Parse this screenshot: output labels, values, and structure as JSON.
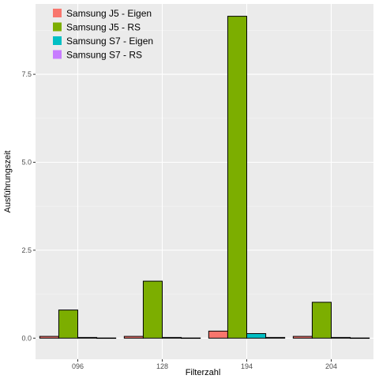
{
  "chart_data": {
    "type": "bar",
    "title": "",
    "xlabel": "Filterzahl",
    "ylabel": "Ausführungszeit",
    "categories": [
      "096",
      "128",
      "194",
      "204"
    ],
    "series": [
      {
        "name": "Samsung J5 - Eigen",
        "color": "#F8766D",
        "values": [
          0.05,
          0.05,
          0.2,
          0.05
        ]
      },
      {
        "name": "Samsung J5 - RS",
        "color": "#7CAE00",
        "values": [
          0.8,
          1.62,
          9.15,
          1.02
        ]
      },
      {
        "name": "Samsung S7 - Eigen",
        "color": "#00BFC4",
        "values": [
          0.02,
          0.02,
          0.13,
          0.02
        ]
      },
      {
        "name": "Samsung S7 - RS",
        "color": "#C77CFF",
        "values": [
          0.005,
          0.005,
          0.02,
          0.005
        ]
      }
    ],
    "ylim": [
      -0.6,
      9.5
    ],
    "yticks": [
      0.0,
      2.5,
      5.0,
      7.5
    ],
    "ytick_labels": [
      "0.0",
      "2.5",
      "5.0",
      "7.5"
    ],
    "grid": true,
    "legend_position": "top-left"
  }
}
